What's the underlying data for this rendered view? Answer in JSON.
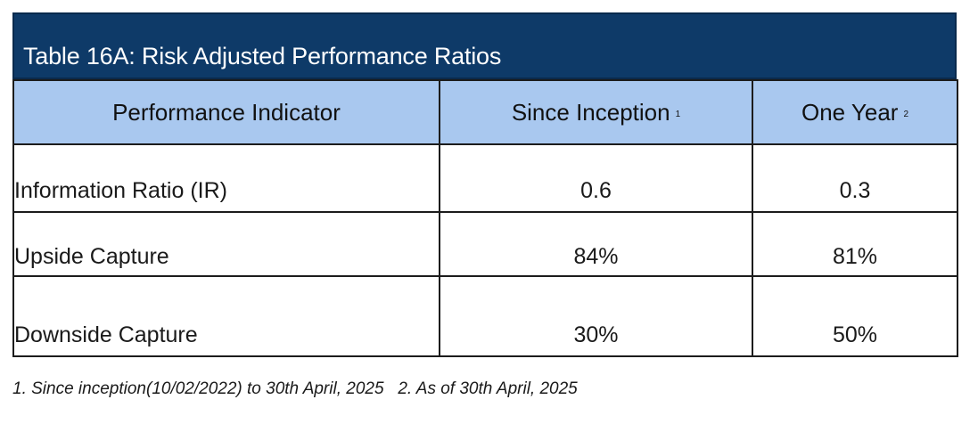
{
  "table": {
    "title": "Table 16A: Risk Adjusted Performance Ratios",
    "headers": {
      "indicator": "Performance Indicator",
      "since_inception": "Since Inception",
      "since_inception_note": "1",
      "one_year": "One Year",
      "one_year_note": "2"
    },
    "rows": [
      {
        "indicator": "Information Ratio (IR)",
        "since_inception": "0.6",
        "one_year": "0.3"
      },
      {
        "indicator": "Upside Capture",
        "since_inception": "84%",
        "one_year": "81%"
      },
      {
        "indicator": "Downside Capture",
        "since_inception": "30%",
        "one_year": "50%"
      }
    ]
  },
  "footnote": "1. Since inception(10/02/2022) to 30th April, 2025   2. As of 30th April, 2025",
  "colors": {
    "title_background": "#0e3a68",
    "header_background": "#a9c8ef",
    "title_text": "#ffffff"
  }
}
